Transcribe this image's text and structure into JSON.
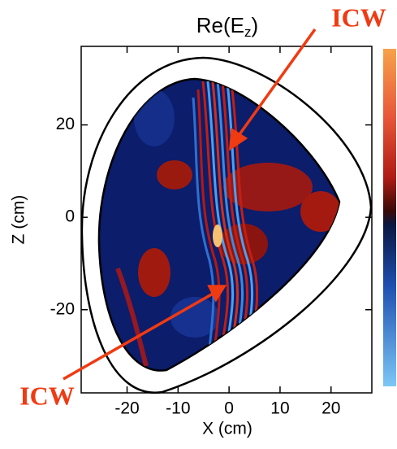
{
  "chart_data": {
    "type": "field",
    "title": [
      "Re(E",
      "z",
      ")"
    ],
    "x_label": "X (cm)",
    "y_label": "Z (cm)",
    "xlim": [
      -29,
      28
    ],
    "xticks": [
      -20,
      -10,
      0,
      10,
      20
    ],
    "ylim": [
      -38,
      37
    ],
    "yticks": [
      -20,
      0,
      20
    ],
    "annotations": [
      "ICW",
      "ICW"
    ]
  }
}
